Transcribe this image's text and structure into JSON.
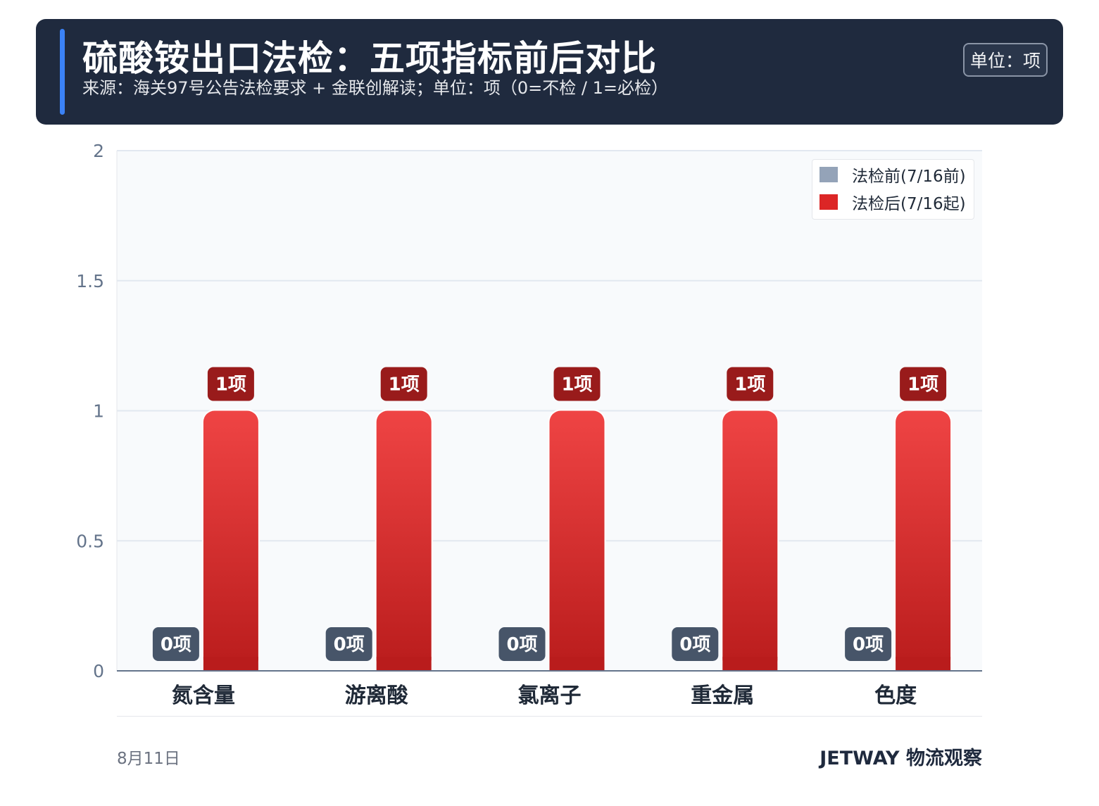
{
  "header": {
    "title": "硫酸铵出口法检：五项指标前后对比",
    "subtitle": "来源：海关97号公告法检要求 + 金联创解读；单位：项（0=不检 / 1=必检）",
    "unit_badge": "单位：项"
  },
  "chart_data": {
    "type": "bar",
    "categories": [
      "氮含量",
      "游离酸",
      "氯离子",
      "重金属",
      "色度"
    ],
    "series": [
      {
        "name": "法检前(7/16前)",
        "values": [
          0,
          0,
          0,
          0,
          0
        ],
        "color": "#94a3b8",
        "label_bg": "#475569"
      },
      {
        "name": "法检后(7/16起)",
        "values": [
          1,
          1,
          1,
          1,
          1
        ],
        "color": "#ef4444",
        "color_dark": "#b91c1c",
        "label_bg": "#991b1b"
      }
    ],
    "value_labels": [
      "0项",
      "1项"
    ],
    "value_label_suffix": "项",
    "ylim": [
      0,
      2
    ],
    "yticks": [
      "0",
      "0.5",
      "1",
      "1.5",
      "2"
    ],
    "grid": true,
    "legend_position": "top-right"
  },
  "footer": {
    "date": "8月11日",
    "brand": "JETWAY 物流观察"
  },
  "colors": {
    "header_bg": "#1f2a3e",
    "accent": "#3b82f6",
    "plot_bg": "#f8fafc"
  }
}
